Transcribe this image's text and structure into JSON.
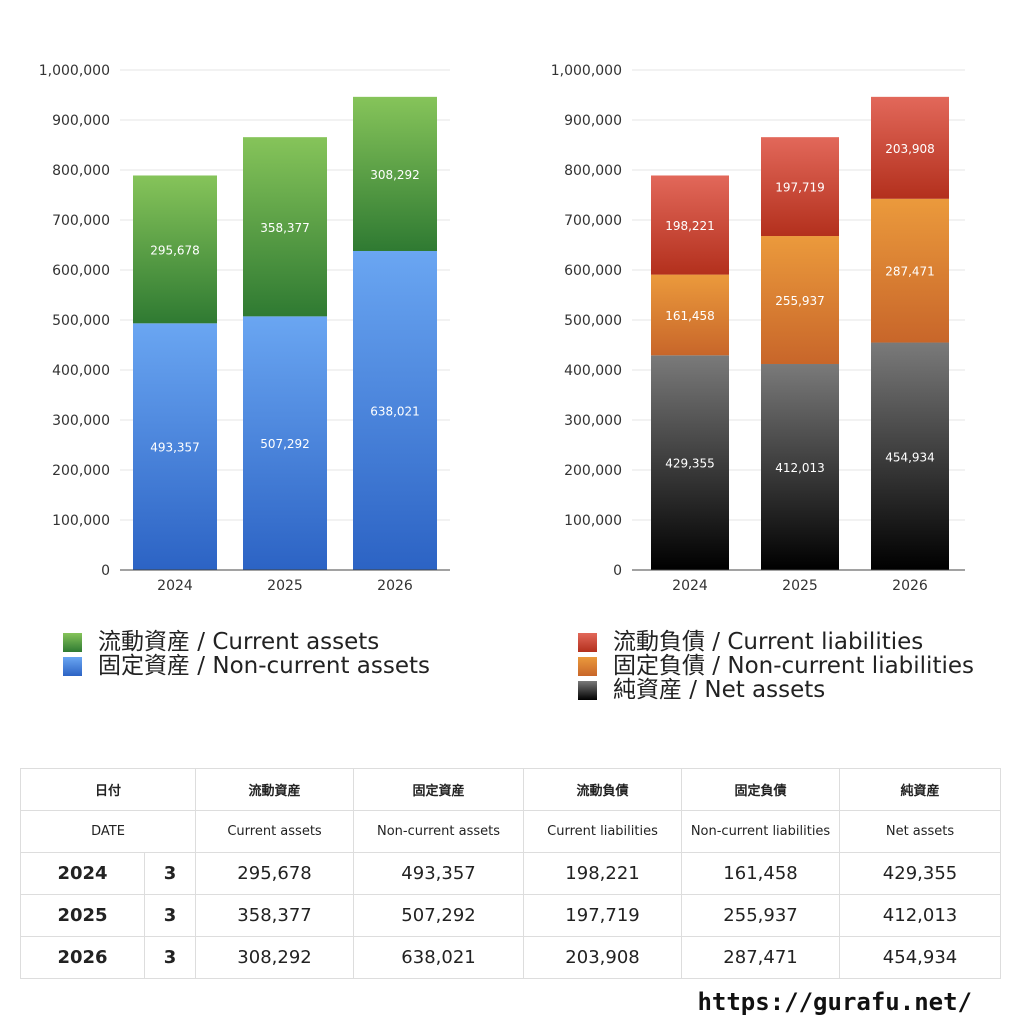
{
  "chart_data": [
    {
      "type": "bar",
      "stacked": true,
      "categories": [
        "2024",
        "2025",
        "2026"
      ],
      "ylim": [
        0,
        1000000
      ],
      "yticks": [
        "0",
        "100,000",
        "200,000",
        "300,000",
        "400,000",
        "500,000",
        "600,000",
        "700,000",
        "800,000",
        "900,000",
        "1,000,000"
      ],
      "grid": true,
      "series": [
        {
          "name": "固定資産 / Non-current assets",
          "values": [
            493357,
            507292,
            638021
          ],
          "labels": [
            "493,357",
            "507,292",
            "638,021"
          ],
          "color_top": "#6aa6f2",
          "color_bottom": "#2c63c4"
        },
        {
          "name": "流動資産 / Current assets",
          "values": [
            295678,
            358377,
            308292
          ],
          "labels": [
            "295,678",
            "358,377",
            "308,292"
          ],
          "color_top": "#86c45a",
          "color_bottom": "#2f7a32"
        }
      ]
    },
    {
      "type": "bar",
      "stacked": true,
      "categories": [
        "2024",
        "2025",
        "2026"
      ],
      "ylim": [
        0,
        1000000
      ],
      "yticks": [
        "0",
        "100,000",
        "200,000",
        "300,000",
        "400,000",
        "500,000",
        "600,000",
        "700,000",
        "800,000",
        "900,000",
        "1,000,000"
      ],
      "grid": true,
      "series": [
        {
          "name": "純資産 / Net assets",
          "values": [
            429355,
            412013,
            454934
          ],
          "labels": [
            "429,355",
            "412,013",
            "454,934"
          ],
          "color_top": "#7a7a7a",
          "color_bottom": "#000000"
        },
        {
          "name": "固定負債 / Non-current liabilities",
          "values": [
            161458,
            255937,
            287471
          ],
          "labels": [
            "161,458",
            "255,937",
            "287,471"
          ],
          "color_top": "#eb9a3c",
          "color_bottom": "#c8662a"
        },
        {
          "name": "流動負債 / Current liabilities",
          "values": [
            198221,
            197719,
            203908
          ],
          "labels": [
            "198,221",
            "197,719",
            "203,908"
          ],
          "color_top": "#e2685a",
          "color_bottom": "#b3301d"
        }
      ]
    }
  ],
  "legend_left": [
    {
      "label": "流動資産 / Current assets",
      "color": "#4c9a3e"
    },
    {
      "label": "固定資産 / Non-current assets",
      "color": "#4a86dc"
    }
  ],
  "legend_right": [
    {
      "label": "流動負債 / Current liabilities",
      "color": "#cc4233"
    },
    {
      "label": "固定負債 / Non-current liabilities",
      "color": "#e08634"
    },
    {
      "label": "純資産 / Net assets",
      "color": "#333333"
    }
  ],
  "table": {
    "header_jp": {
      "date": "日付",
      "c1": "流動資産",
      "c2": "固定資産",
      "c3": "流動負債",
      "c4": "固定負債",
      "c5": "純資産"
    },
    "header_en": {
      "date": "DATE",
      "c1": "Current assets",
      "c2": "Non-current assets",
      "c3": "Current liabilities",
      "c4": "Non-current liabilities",
      "c5": "Net assets"
    },
    "rows": [
      {
        "year": "2024",
        "count": "3",
        "c1": "295,678",
        "c2": "493,357",
        "c3": "198,221",
        "c4": "161,458",
        "c5": "429,355"
      },
      {
        "year": "2025",
        "count": "3",
        "c1": "358,377",
        "c2": "507,292",
        "c3": "197,719",
        "c4": "255,937",
        "c5": "412,013"
      },
      {
        "year": "2026",
        "count": "3",
        "c1": "308,292",
        "c2": "638,021",
        "c3": "203,908",
        "c4": "287,471",
        "c5": "454,934"
      }
    ]
  },
  "footer": {
    "url": "https://gurafu.net/"
  }
}
